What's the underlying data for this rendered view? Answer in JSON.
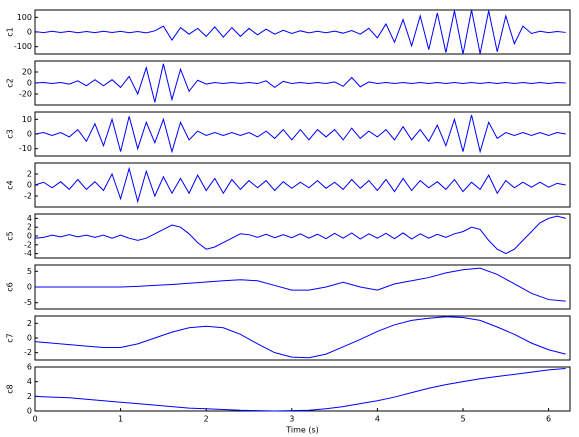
{
  "chart_data": [
    {
      "type": "line",
      "ylabel": "c1",
      "color": "#0000ff",
      "xlim": [
        0,
        6.25
      ],
      "ylim": [
        -150,
        150
      ],
      "yticks": [
        -100,
        0,
        100
      ],
      "x": [
        0,
        0.1,
        0.2,
        0.3,
        0.4,
        0.5,
        0.6,
        0.7,
        0.8,
        0.9,
        1,
        1.1,
        1.2,
        1.3,
        1.4,
        1.5,
        1.6,
        1.7,
        1.8,
        1.9,
        2,
        2.1,
        2.2,
        2.3,
        2.4,
        2.5,
        2.6,
        2.7,
        2.8,
        2.9,
        3,
        3.1,
        3.2,
        3.3,
        3.4,
        3.5,
        3.6,
        3.7,
        3.8,
        3.9,
        4,
        4.1,
        4.2,
        4.3,
        4.4,
        4.5,
        4.6,
        4.7,
        4.8,
        4.9,
        5,
        5.1,
        5.2,
        5.3,
        5.4,
        5.5,
        5.6,
        5.7,
        5.8,
        5.9,
        6,
        6.1,
        6.2
      ],
      "values": [
        3,
        -4,
        5,
        -3,
        4,
        -5,
        3,
        -4,
        5,
        -3,
        4,
        -5,
        3,
        -6,
        8,
        40,
        -55,
        30,
        -15,
        25,
        -30,
        35,
        -35,
        30,
        -30,
        25,
        -20,
        20,
        -15,
        12,
        -10,
        8,
        -6,
        5,
        -5,
        6,
        -8,
        10,
        -15,
        25,
        -40,
        55,
        -70,
        85,
        -95,
        110,
        -120,
        130,
        -140,
        145,
        -150,
        150,
        -148,
        145,
        -135,
        110,
        -80,
        40,
        -10,
        5,
        -4,
        3,
        -3
      ]
    },
    {
      "type": "line",
      "ylabel": "c2",
      "color": "#0000ff",
      "xlim": [
        0,
        6.25
      ],
      "ylim": [
        -40,
        40
      ],
      "yticks": [
        -20,
        0,
        20
      ],
      "x": [
        0,
        0.1,
        0.2,
        0.3,
        0.4,
        0.5,
        0.6,
        0.7,
        0.8,
        0.9,
        1,
        1.1,
        1.2,
        1.3,
        1.4,
        1.5,
        1.6,
        1.7,
        1.8,
        1.9,
        2,
        2.1,
        2.2,
        2.3,
        2.4,
        2.5,
        2.6,
        2.7,
        2.8,
        2.9,
        3,
        3.1,
        3.2,
        3.3,
        3.4,
        3.5,
        3.6,
        3.7,
        3.8,
        3.9,
        4,
        4.1,
        4.2,
        4.3,
        4.4,
        4.5,
        4.6,
        4.7,
        4.8,
        4.9,
        5,
        5.1,
        5.2,
        5.3,
        5.4,
        5.5,
        5.6,
        5.7,
        5.8,
        5.9,
        6,
        6.1,
        6.2
      ],
      "values": [
        0,
        1,
        -1,
        1,
        -2,
        4,
        -5,
        6,
        -5,
        6,
        -8,
        12,
        -20,
        28,
        -35,
        35,
        -30,
        25,
        -15,
        5,
        -2,
        1,
        -1,
        1,
        -1,
        1,
        -1,
        4,
        -8,
        3,
        -1,
        1,
        -1,
        1,
        -1,
        2,
        -6,
        10,
        -7,
        2,
        -1,
        1,
        -1,
        1,
        -1,
        1,
        -1,
        1,
        -1,
        1,
        -1,
        1,
        -1,
        1,
        -1,
        1,
        -1,
        1,
        -1,
        1,
        -1,
        1,
        0
      ]
    },
    {
      "type": "line",
      "ylabel": "c3",
      "color": "#0000ff",
      "xlim": [
        0,
        6.25
      ],
      "ylim": [
        -15,
        15
      ],
      "yticks": [
        -10,
        0,
        10
      ],
      "x": [
        0,
        0.1,
        0.2,
        0.3,
        0.4,
        0.5,
        0.6,
        0.7,
        0.8,
        0.9,
        1,
        1.1,
        1.2,
        1.3,
        1.4,
        1.5,
        1.6,
        1.7,
        1.8,
        1.9,
        2,
        2.1,
        2.2,
        2.3,
        2.4,
        2.5,
        2.6,
        2.7,
        2.8,
        2.9,
        3,
        3.1,
        3.2,
        3.3,
        3.4,
        3.5,
        3.6,
        3.7,
        3.8,
        3.9,
        4,
        4.1,
        4.2,
        4.3,
        4.4,
        4.5,
        4.6,
        4.7,
        4.8,
        4.9,
        5,
        5.1,
        5.2,
        5.3,
        5.4,
        5.5,
        5.6,
        5.7,
        5.8,
        5.9,
        6,
        6.1,
        6.2
      ],
      "values": [
        0,
        1,
        -1,
        1,
        -2,
        3,
        -5,
        7,
        -8,
        10,
        -12,
        12,
        -10,
        8,
        -6,
        10,
        -12,
        8,
        -4,
        2,
        -1,
        1,
        -1,
        1,
        -1,
        1,
        -2,
        2,
        -3,
        3,
        -4,
        3,
        -4,
        3,
        -2,
        3,
        -4,
        4,
        -3,
        2,
        -2,
        3,
        -4,
        5,
        -4,
        3,
        -5,
        6,
        -8,
        10,
        -12,
        13,
        -12,
        8,
        -3,
        1,
        -1,
        1,
        -1,
        1,
        -1,
        1,
        0
      ]
    },
    {
      "type": "line",
      "ylabel": "c4",
      "color": "#0000ff",
      "xlim": [
        0,
        6.25
      ],
      "ylim": [
        -4,
        4
      ],
      "yticks": [
        -2,
        0,
        2
      ],
      "x": [
        0,
        0.1,
        0.2,
        0.3,
        0.4,
        0.5,
        0.6,
        0.7,
        0.8,
        0.9,
        1,
        1.1,
        1.2,
        1.3,
        1.4,
        1.5,
        1.6,
        1.7,
        1.8,
        1.9,
        2,
        2.1,
        2.2,
        2.3,
        2.4,
        2.5,
        2.6,
        2.7,
        2.8,
        2.9,
        3,
        3.1,
        3.2,
        3.3,
        3.4,
        3.5,
        3.6,
        3.7,
        3.8,
        3.9,
        4,
        4.1,
        4.2,
        4.3,
        4.4,
        4.5,
        4.6,
        4.7,
        4.8,
        4.9,
        5,
        5.1,
        5.2,
        5.3,
        5.4,
        5.5,
        5.6,
        5.7,
        5.8,
        5.9,
        6,
        6.1,
        6.2
      ],
      "values": [
        0,
        0.5,
        -0.5,
        0.6,
        -0.8,
        1,
        -0.8,
        0.6,
        -1,
        2,
        -2.5,
        3,
        -3,
        2.5,
        -2,
        1.5,
        -1.5,
        1.2,
        -1.5,
        1.8,
        -1,
        1.2,
        -1.5,
        1,
        -0.8,
        0.8,
        -0.5,
        0.8,
        -1,
        0.6,
        -0.6,
        0.5,
        -0.5,
        0.8,
        -0.6,
        0.5,
        -0.8,
        1,
        -0.6,
        0.8,
        -1,
        1,
        -1.2,
        1.2,
        -1,
        0.8,
        -0.5,
        0.6,
        -0.8,
        1,
        -1.2,
        0.5,
        -0.8,
        1.8,
        -1.5,
        0.8,
        -0.5,
        0.5,
        -0.4,
        0.5,
        -0.4,
        0.3,
        0
      ]
    },
    {
      "type": "line",
      "ylabel": "c5",
      "color": "#0000ff",
      "xlim": [
        0,
        6.25
      ],
      "ylim": [
        -5,
        5
      ],
      "yticks": [
        -4,
        -2,
        0,
        2,
        4
      ],
      "x": [
        0,
        0.1,
        0.2,
        0.3,
        0.4,
        0.5,
        0.6,
        0.7,
        0.8,
        0.9,
        1,
        1.1,
        1.2,
        1.3,
        1.4,
        1.5,
        1.6,
        1.7,
        1.8,
        1.9,
        2,
        2.1,
        2.2,
        2.3,
        2.4,
        2.5,
        2.6,
        2.7,
        2.8,
        2.9,
        3,
        3.1,
        3.2,
        3.3,
        3.4,
        3.5,
        3.6,
        3.7,
        3.8,
        3.9,
        4,
        4.1,
        4.2,
        4.3,
        4.4,
        4.5,
        4.6,
        4.7,
        4.8,
        4.9,
        5,
        5.1,
        5.2,
        5.3,
        5.4,
        5.5,
        5.6,
        5.7,
        5.8,
        5.9,
        6,
        6.1,
        6.2
      ],
      "values": [
        -0.5,
        -0.3,
        0.2,
        -0.2,
        0.3,
        -0.2,
        0.2,
        -0.3,
        0.2,
        -0.5,
        0.2,
        -0.5,
        -1,
        -0.5,
        0.5,
        1.5,
        2.5,
        2,
        0.5,
        -1.5,
        -3,
        -2.5,
        -1.5,
        -0.5,
        0.5,
        0.3,
        -0.3,
        0.4,
        -0.4,
        0.3,
        -0.4,
        0.5,
        -0.5,
        0.4,
        -0.6,
        0.6,
        -0.5,
        0.7,
        -0.7,
        0.5,
        -0.5,
        0.6,
        -0.6,
        0.7,
        -0.7,
        0.5,
        -0.5,
        0.4,
        -0.3,
        0.5,
        1,
        2,
        1.5,
        -1,
        -3,
        -4,
        -3,
        -1,
        1,
        3,
        4,
        4.5,
        4
      ]
    },
    {
      "type": "line",
      "ylabel": "c6",
      "color": "#0000ff",
      "xlim": [
        0,
        6.25
      ],
      "ylim": [
        -7,
        7
      ],
      "yticks": [
        -5,
        0,
        5
      ],
      "x": [
        0,
        0.2,
        0.4,
        0.6,
        0.8,
        1,
        1.2,
        1.4,
        1.6,
        1.8,
        2,
        2.2,
        2.4,
        2.6,
        2.8,
        3,
        3.2,
        3.4,
        3.6,
        3.8,
        4,
        4.2,
        4.4,
        4.6,
        4.8,
        5,
        5.2,
        5.4,
        5.6,
        5.8,
        6,
        6.2
      ],
      "values": [
        0,
        0,
        0,
        0,
        0,
        0,
        0.2,
        0.5,
        0.8,
        1.2,
        1.6,
        2,
        2.3,
        2,
        0.5,
        -1,
        -1,
        0,
        1.5,
        0,
        -1,
        1,
        2,
        3,
        4.5,
        5.5,
        6,
        4,
        1,
        -2,
        -4,
        -4.5
      ]
    },
    {
      "type": "line",
      "ylabel": "c7",
      "color": "#0000ff",
      "xlim": [
        0,
        6.25
      ],
      "ylim": [
        -3,
        3
      ],
      "yticks": [
        -2,
        0,
        2
      ],
      "x": [
        0,
        0.2,
        0.4,
        0.6,
        0.8,
        1,
        1.2,
        1.4,
        1.6,
        1.8,
        2,
        2.2,
        2.4,
        2.6,
        2.8,
        3,
        3.2,
        3.4,
        3.6,
        3.8,
        4,
        4.2,
        4.4,
        4.6,
        4.8,
        5,
        5.2,
        5.4,
        5.6,
        5.8,
        6,
        6.2
      ],
      "values": [
        -0.5,
        -0.7,
        -0.9,
        -1.1,
        -1.3,
        -1.3,
        -0.8,
        0,
        0.8,
        1.4,
        1.6,
        1.4,
        0.5,
        -0.8,
        -2,
        -2.6,
        -2.7,
        -2.2,
        -1.2,
        -0.2,
        0.9,
        1.8,
        2.4,
        2.7,
        2.9,
        2.8,
        2.4,
        1.5,
        0.5,
        -0.7,
        -1.6,
        -2.2
      ]
    },
    {
      "type": "line",
      "ylabel": "c8",
      "color": "#0000ff",
      "xlim": [
        0,
        6.25
      ],
      "ylim": [
        0,
        6
      ],
      "yticks": [
        0,
        2,
        4,
        6
      ],
      "xticks": [
        0,
        1,
        2,
        3,
        4,
        5,
        6
      ],
      "xlabel": "Time (s)",
      "x": [
        0,
        0.2,
        0.4,
        0.6,
        0.8,
        1,
        1.2,
        1.4,
        1.6,
        1.8,
        2,
        2.2,
        2.4,
        2.6,
        2.8,
        3,
        3.2,
        3.4,
        3.6,
        3.8,
        4,
        4.2,
        4.4,
        4.6,
        4.8,
        5,
        5.2,
        5.4,
        5.6,
        5.8,
        6,
        6.2
      ],
      "values": [
        2,
        1.9,
        1.8,
        1.6,
        1.4,
        1.2,
        1,
        0.8,
        0.6,
        0.4,
        0.3,
        0.2,
        0.1,
        0.05,
        0,
        0.05,
        0.1,
        0.3,
        0.6,
        1,
        1.4,
        1.9,
        2.5,
        3.1,
        3.6,
        4,
        4.4,
        4.7,
        5,
        5.3,
        5.6,
        5.8
      ]
    }
  ]
}
